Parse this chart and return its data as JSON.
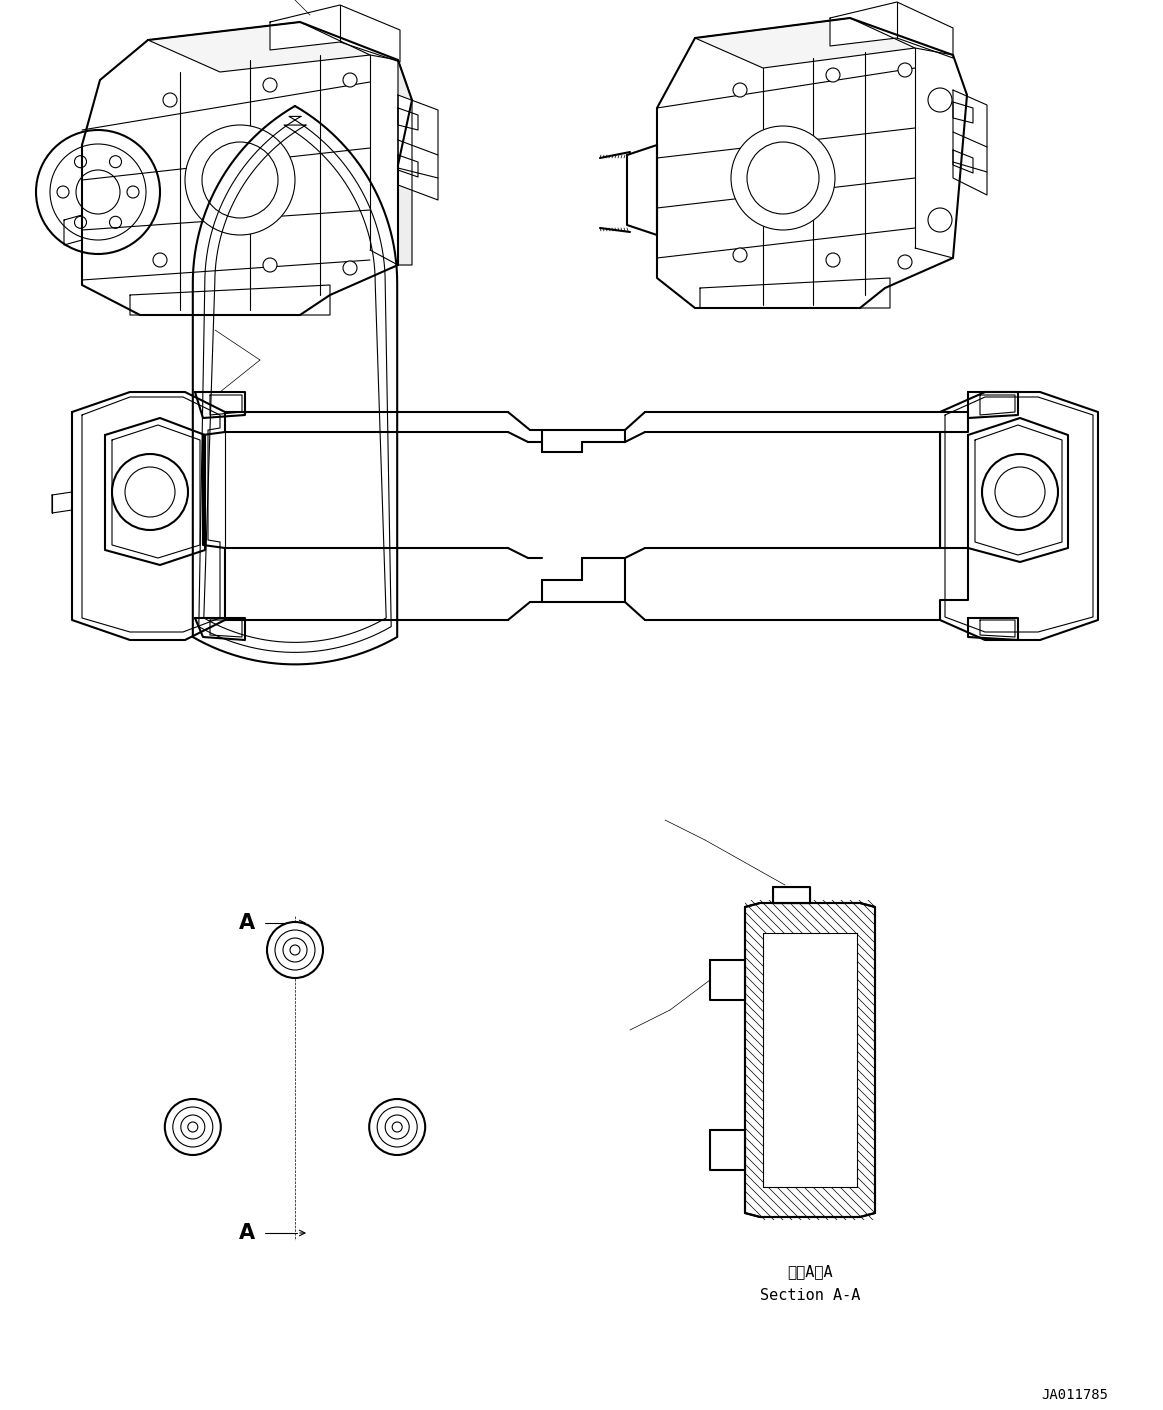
{
  "background_color": "#ffffff",
  "line_color": "#000000",
  "drawing_number": "JA011785",
  "section_label_japanese": "断面A－A",
  "section_label_english": "Section A-A",
  "figsize": [
    11.63,
    14.1
  ],
  "dpi": 100
}
